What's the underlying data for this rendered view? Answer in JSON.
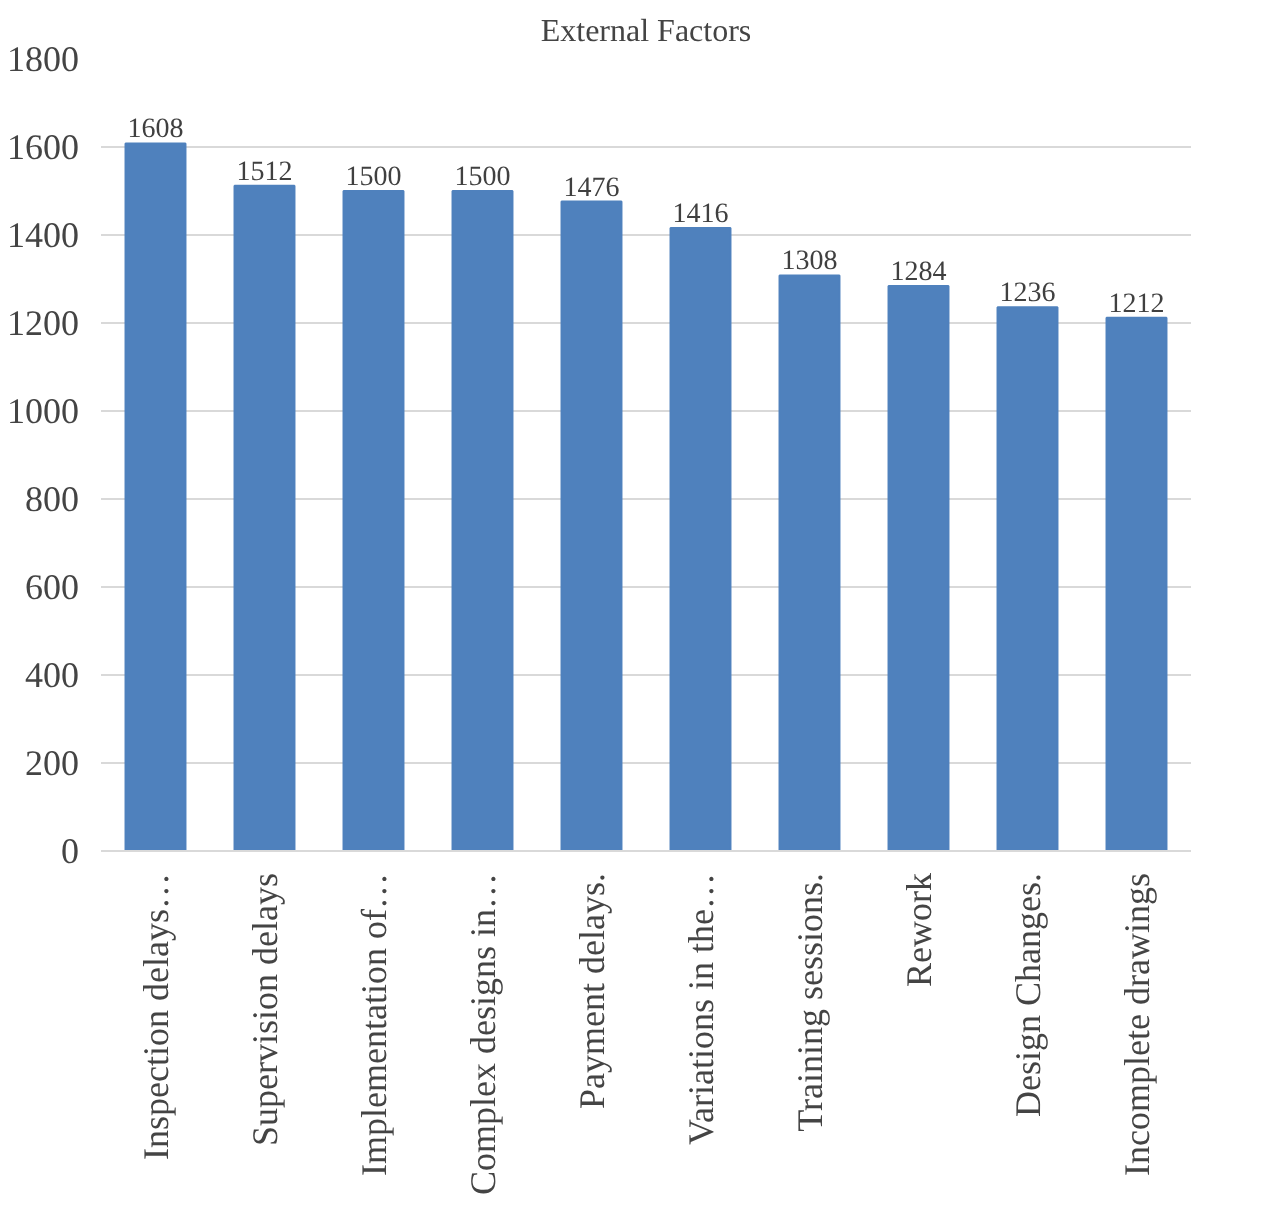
{
  "chart_data": {
    "type": "bar",
    "title": "External Factors",
    "categories": [
      "Inspection delays…",
      "Supervision delays",
      "Implementation of…",
      "Complex designs in…",
      "Payment delays.",
      "Variations in the…",
      "Training sessions.",
      "Rework",
      "Design Changes.",
      "Incomplete drawings"
    ],
    "values": [
      1608,
      1512,
      1500,
      1500,
      1476,
      1416,
      1308,
      1284,
      1236,
      1212
    ],
    "color": "#4f81bd",
    "ylim": [
      0,
      1800
    ],
    "yticks": [
      0,
      200,
      400,
      600,
      800,
      1000,
      1200,
      1400,
      1600,
      1800
    ],
    "grid": "y",
    "data_labels": true
  }
}
